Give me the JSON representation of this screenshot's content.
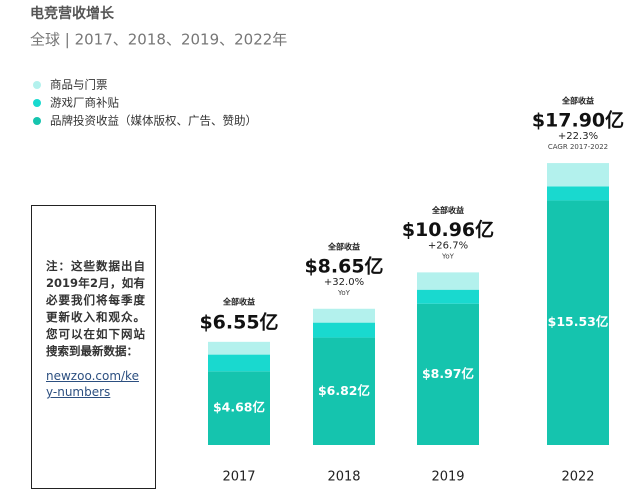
{
  "title": "电竞营收增长",
  "subtitle": "全球 | 2017、2018、2019、2022年",
  "note": "注：这些数据出自2019年2月，如有必要我们将每季度更新收入和观众。您可以在如下网站搜索到最新数据：",
  "note_link": "newzoo.com/key-numbers",
  "chart_data": {
    "type": "stacked_bar",
    "categories": [
      "2017",
      "2018",
      "2019",
      "2022"
    ],
    "series": [
      {
        "name": "商品与门票",
        "color": "#b3f1ed",
        "values": [
          0.81,
          0.88,
          1.1,
          1.48
        ]
      },
      {
        "name": "游戏厂商补贴",
        "color": "#19d9cf",
        "values": [
          1.06,
          0.95,
          0.89,
          0.89
        ]
      },
      {
        "name": "品牌投资收益（媒体版权、广告、赞助）",
        "color": "#15c4ae",
        "values": [
          4.68,
          6.82,
          8.97,
          15.53
        ],
        "value_labels": [
          "$4.68亿",
          "$6.82亿",
          "$8.97亿",
          "$15.53亿"
        ]
      }
    ],
    "total_caption": "全部收益",
    "totals": {
      "values": [
        6.55,
        8.65,
        10.96,
        17.9
      ],
      "value_labels": [
        "$6.55亿",
        "$8.65亿",
        "$10.96亿",
        "$17.90亿"
      ]
    },
    "growth": {
      "values": [
        null,
        32.0,
        26.7,
        22.3
      ],
      "value_labels": [
        null,
        "+32.0%",
        "+26.7%",
        "+22.3%"
      ]
    },
    "growth_notes": [
      null,
      "YoY",
      "YoY",
      "CAGR 2017-2022"
    ]
  }
}
